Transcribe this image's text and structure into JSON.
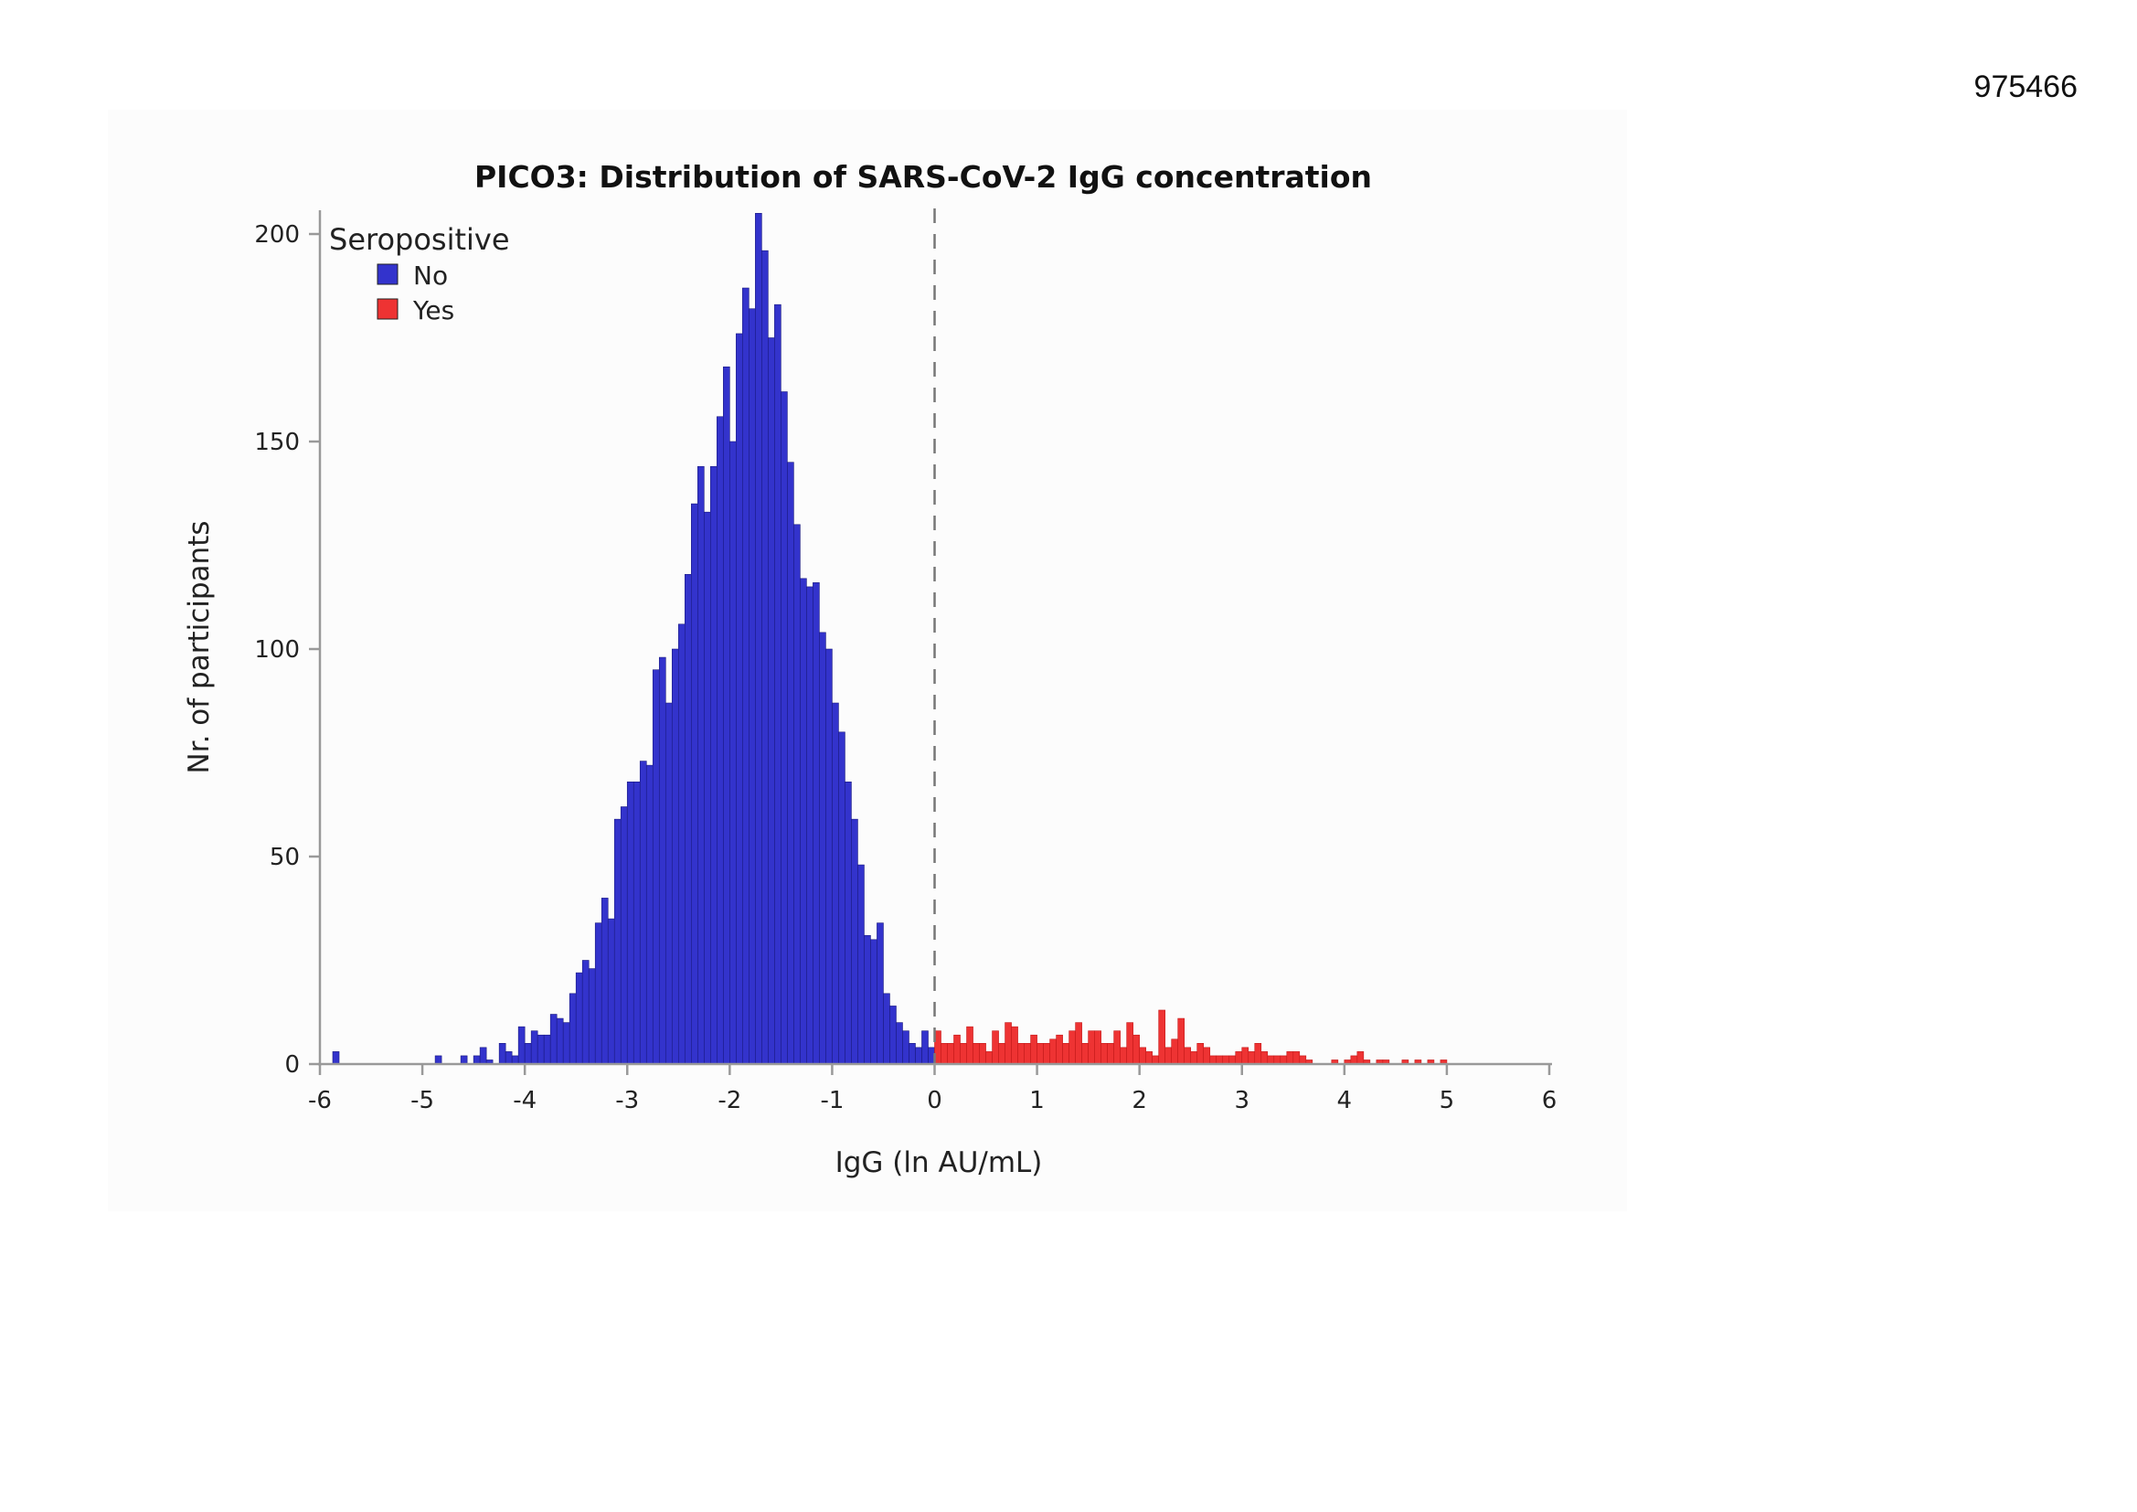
{
  "page_id": "975466",
  "chart_data": {
    "type": "bar",
    "subtype": "histogram",
    "title": "PICO3: Distribution of SARS-CoV-2 IgG concentration",
    "xlabel": "IgG (ln AU/mL)",
    "ylabel": "Nr. of participants",
    "xlim": [
      -6,
      6
    ],
    "ylim": [
      0,
      200
    ],
    "xticks": [
      -6,
      -5,
      -4,
      -3,
      -2,
      -1,
      0,
      1,
      2,
      3,
      4,
      5,
      6
    ],
    "xtick_labels": [
      "-6",
      "-5",
      "-4",
      "-3",
      "-2",
      "-1",
      "0",
      "1",
      "2",
      "3",
      "4",
      "5",
      "6"
    ],
    "yticks": [
      0,
      50,
      100,
      150,
      200
    ],
    "ytick_labels": [
      "0",
      "50",
      "100",
      "150",
      "200"
    ],
    "cutoff_line_x": 0,
    "bin_width": 0.0625,
    "legend": {
      "title": "Seropositive",
      "position": "top-left",
      "entries": [
        {
          "label": "No",
          "color": "#3333cc"
        },
        {
          "label": "Yes",
          "color": "#ee3333"
        }
      ]
    },
    "series": [
      {
        "name": "No",
        "color": "#3333cc",
        "x_start": -6.0,
        "values": [
          0,
          0,
          3,
          0,
          0,
          0,
          0,
          0,
          0,
          0,
          0,
          0,
          0,
          0,
          0,
          0,
          0,
          0,
          2,
          0,
          0,
          0,
          2,
          0,
          2,
          4,
          1,
          0,
          5,
          3,
          2,
          9,
          5,
          8,
          7,
          7,
          12,
          11,
          10,
          17,
          22,
          25,
          23,
          34,
          40,
          35,
          59,
          62,
          68,
          68,
          73,
          72,
          95,
          98,
          87,
          100,
          106,
          118,
          135,
          144,
          133,
          144,
          156,
          168,
          150,
          176,
          187,
          182,
          205,
          196,
          175,
          183,
          162,
          145,
          130,
          117,
          115,
          116,
          104,
          100,
          87,
          80,
          68,
          59,
          48,
          31,
          30,
          34,
          17,
          14,
          10,
          8,
          5,
          4,
          8,
          4,
          1
        ],
        "y_labels": []
      },
      {
        "name": "Yes",
        "color": "#ee3333",
        "x_start": 0.0,
        "values": [
          8,
          5,
          5,
          7,
          5,
          9,
          5,
          5,
          3,
          8,
          5,
          10,
          9,
          5,
          5,
          7,
          5,
          5,
          6,
          7,
          5,
          8,
          10,
          5,
          8,
          8,
          5,
          5,
          8,
          4,
          10,
          7,
          4,
          3,
          2,
          13,
          4,
          6,
          11,
          4,
          3,
          5,
          4,
          2,
          2,
          2,
          2,
          3,
          4,
          3,
          5,
          3,
          2,
          2,
          2,
          3,
          3,
          2,
          1,
          0,
          0,
          0,
          1,
          0,
          1,
          2,
          3,
          1,
          0,
          1,
          1,
          0,
          0,
          1,
          0,
          1,
          0,
          1,
          0,
          1,
          0,
          0
        ]
      }
    ]
  }
}
